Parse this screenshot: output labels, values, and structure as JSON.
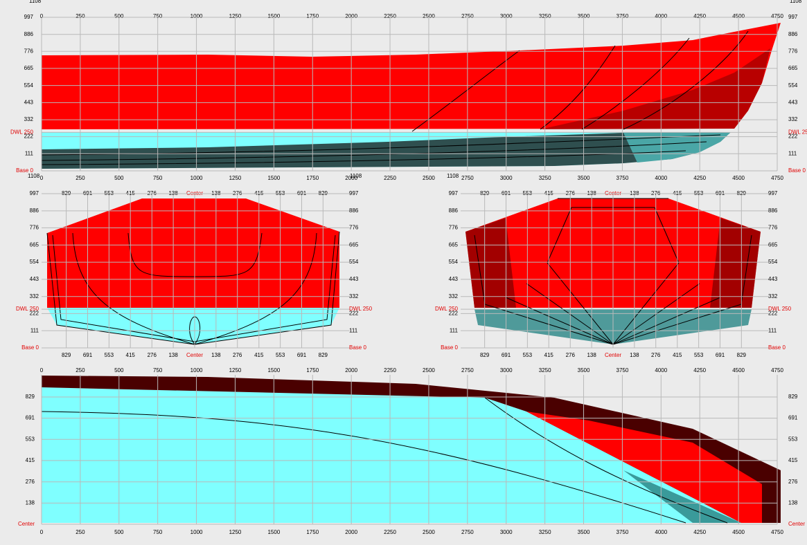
{
  "profile": {
    "corner_top_left": "1108",
    "corner_top_right": "1108",
    "corner_bottom_left": "1108",
    "x_labels": [
      0,
      250,
      500,
      750,
      1000,
      1250,
      1500,
      1750,
      2000,
      2250,
      2500,
      2750,
      3000,
      3250,
      3500,
      3750,
      4000,
      4250,
      4500,
      4750
    ],
    "y_labels": [
      {
        "value": 0,
        "label": "Base 0"
      },
      111,
      222,
      {
        "value": 250,
        "label": "DWL 250"
      },
      332,
      443,
      554,
      665,
      776,
      886,
      997
    ]
  },
  "section_left": {
    "corner_label": "1108",
    "x_labels": [
      {
        "value": -829,
        "label": "829"
      },
      {
        "value": -691,
        "label": "691"
      },
      {
        "value": -553,
        "label": "553"
      },
      {
        "value": -415,
        "label": "415"
      },
      {
        "value": -276,
        "label": "276"
      },
      {
        "value": -138,
        "label": "138"
      },
      {
        "value": 0,
        "label": "Center"
      },
      138,
      276,
      415,
      553,
      691,
      829
    ],
    "y_labels": [
      {
        "value": 0,
        "label": "Base 0"
      },
      111,
      222,
      {
        "value": 250,
        "label": "DWL 250"
      },
      332,
      443,
      554,
      665,
      776,
      886,
      997
    ]
  },
  "section_right": {
    "corner_label": "1108",
    "x_labels": [
      {
        "value": -829,
        "label": "829"
      },
      {
        "value": -691,
        "label": "691"
      },
      {
        "value": -553,
        "label": "553"
      },
      {
        "value": -415,
        "label": "415"
      },
      {
        "value": -276,
        "label": "276"
      },
      {
        "value": -138,
        "label": "138"
      },
      {
        "value": 0,
        "label": "Center"
      },
      138,
      276,
      415,
      553,
      691,
      829
    ],
    "y_labels": [
      {
        "value": 0,
        "label": "Base 0"
      },
      111,
      222,
      {
        "value": 250,
        "label": "DWL 250"
      },
      332,
      443,
      554,
      665,
      776,
      886,
      997
    ]
  },
  "plan": {
    "x_labels": [
      0,
      250,
      500,
      750,
      1000,
      1250,
      1500,
      1750,
      2000,
      2250,
      2500,
      2750,
      3000,
      3250,
      3500,
      3750,
      4000,
      4250,
      4500,
      4750
    ],
    "y_labels": [
      {
        "value": 0,
        "label": "Center"
      },
      138,
      276,
      415,
      553,
      691,
      829
    ]
  }
}
